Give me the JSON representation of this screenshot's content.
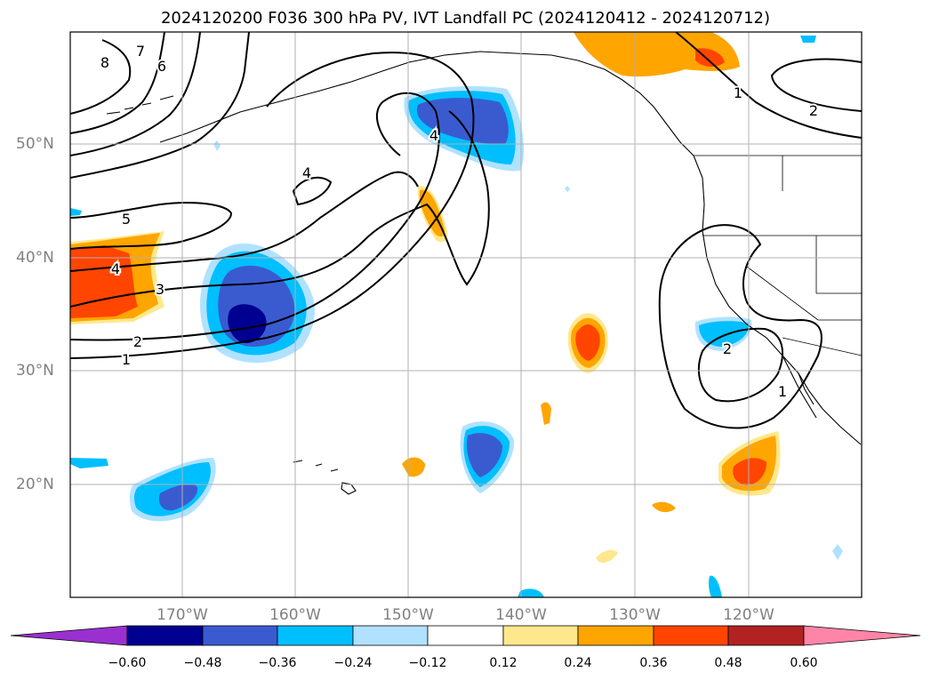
{
  "title": "2024120200 F036 300 hPa PV, IVT Landfall PC (2024120412 - 2024120712)",
  "lat_labels": [
    "50°N",
    "40°N",
    "30°N",
    "20°N"
  ],
  "lon_labels": [
    "170°W",
    "160°W",
    "150°W",
    "140°W",
    "130°W",
    "120°W"
  ],
  "contour_labels": [
    "8",
    "7",
    "6",
    "5",
    "4",
    "3",
    "2",
    "1",
    "4",
    "4",
    "1",
    "2",
    "2",
    "1"
  ],
  "colorbar": {
    "ticks": [
      "−0.60",
      "−0.48",
      "−0.36",
      "−0.24",
      "−0.12",
      "0.12",
      "0.24",
      "0.36",
      "0.48",
      "0.60"
    ],
    "colors": [
      "#9b30d0",
      "#000091",
      "#3a5bd0",
      "#00bfff",
      "#b0e2ff",
      "#ffffff",
      "#ffe88c",
      "#ffa500",
      "#ff4500",
      "#b22222",
      "#ff85a8"
    ]
  },
  "shading_colors": {
    "neg_light": "#b0e2ff",
    "neg_mid": "#00bfff",
    "neg_strong": "#3a5bd0",
    "neg_max": "#000091",
    "pos_light": "#ffe88c",
    "pos_mid": "#ffa500",
    "pos_strong": "#ff4500",
    "pos_max": "#b22222"
  }
}
